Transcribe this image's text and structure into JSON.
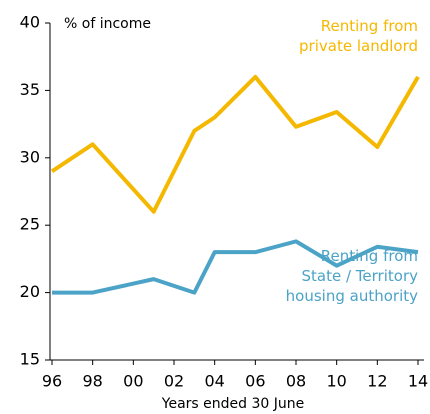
{
  "chart_data": {
    "type": "line",
    "y_axis_label": "% of income",
    "x_axis_label": "Years ended 30 June",
    "series": [
      {
        "name": "Renting from\nprivate landlord",
        "color": "#f5b800",
        "x": [
          1996,
          1998,
          2001,
          2003,
          2004,
          2006,
          2008,
          2010,
          2012,
          2014
        ],
        "values": [
          29,
          31,
          26,
          32,
          33,
          36,
          32.3,
          33.4,
          30.8,
          36
        ]
      },
      {
        "name": "Renting from\nState / Territory\nhousing authority",
        "color": "#4ba3c7",
        "x": [
          1996,
          1998,
          2001,
          2003,
          2004,
          2006,
          2008,
          2010,
          2012,
          2014
        ],
        "values": [
          20,
          20,
          21,
          20,
          23,
          23,
          23.8,
          22,
          23.4,
          23
        ]
      }
    ],
    "xlim": [
      1996,
      2014
    ],
    "xticks": [
      {
        "value": 1996,
        "label": "96"
      },
      {
        "value": 1998,
        "label": "98"
      },
      {
        "value": 2000,
        "label": "00"
      },
      {
        "value": 2002,
        "label": "02"
      },
      {
        "value": 2004,
        "label": "04"
      },
      {
        "value": 2006,
        "label": "06"
      },
      {
        "value": 2008,
        "label": "08"
      },
      {
        "value": 2010,
        "label": "10"
      },
      {
        "value": 2012,
        "label": "12"
      },
      {
        "value": 2014,
        "label": "14"
      }
    ],
    "ylim": [
      15,
      40
    ],
    "yticks": [
      15,
      20,
      25,
      30,
      35,
      40
    ],
    "grid": false
  }
}
